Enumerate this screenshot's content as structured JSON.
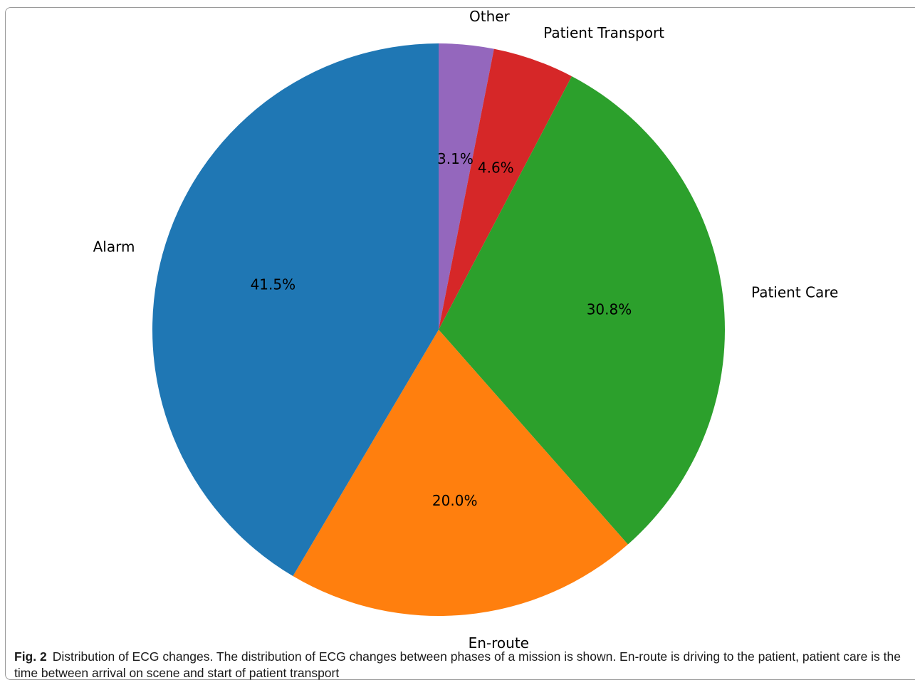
{
  "chart_data": {
    "type": "pie",
    "categories": [
      "Other",
      "Patient Transport",
      "Patient Care",
      "En-route",
      "Alarm"
    ],
    "values": [
      3.1,
      4.6,
      30.8,
      20.0,
      41.5
    ],
    "value_labels": [
      "3.1%",
      "4.6%",
      "30.8%",
      "20.0%",
      "41.5%"
    ],
    "colors": [
      "#9467bd",
      "#d62728",
      "#2ca02c",
      "#ff7f0e",
      "#1f77b4"
    ],
    "start_angle_deg": 90,
    "direction": "clockwise",
    "unit": "%"
  },
  "caption": {
    "label": "Fig. 2",
    "text": "Distribution of ECG changes. The distribution of ECG changes between phases of a mission is shown. En-route is driving to the patient, patient care is the time between arrival on scene and start of patient transport"
  }
}
